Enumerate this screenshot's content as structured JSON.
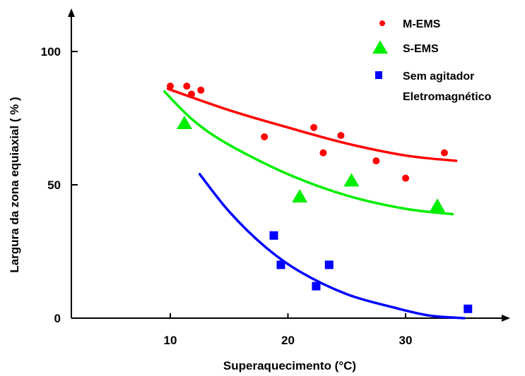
{
  "chart_data": {
    "type": "scatter",
    "title": "",
    "xlabel": "Superaquecimento (°C)",
    "ylabel": "Largura da zona equiaxial ( % )",
    "xlim": [
      0,
      38
    ],
    "ylim": [
      0,
      115
    ],
    "x_ticks": [
      "10",
      "20",
      "30"
    ],
    "y_ticks": [
      "0",
      "50",
      "100"
    ],
    "grid": false,
    "legend_position": "top-right",
    "series": [
      {
        "name": "M-EMS",
        "marker": "circle",
        "color": "#ff0000",
        "points": [
          [
            10,
            87
          ],
          [
            11.4,
            87
          ],
          [
            11.8,
            84
          ],
          [
            12.6,
            85.5
          ],
          [
            18,
            68
          ],
          [
            22.2,
            71.5
          ],
          [
            23,
            62
          ],
          [
            24.5,
            68.5
          ],
          [
            27.5,
            59
          ],
          [
            30,
            52.5
          ],
          [
            33.3,
            62
          ]
        ],
        "fit": [
          [
            9.8,
            86
          ],
          [
            15,
            78
          ],
          [
            20,
            71.5
          ],
          [
            25,
            65.5
          ],
          [
            30,
            61
          ],
          [
            34.3,
            59
          ]
        ]
      },
      {
        "name": "S-EMS",
        "marker": "triangle",
        "color": "#00ee00",
        "points": [
          [
            11.2,
            73
          ],
          [
            21,
            45.5
          ],
          [
            25.4,
            51.5
          ],
          [
            32.7,
            42
          ]
        ],
        "fit": [
          [
            9.5,
            85
          ],
          [
            12,
            74
          ],
          [
            15,
            65
          ],
          [
            20,
            54
          ],
          [
            25,
            46
          ],
          [
            30,
            41
          ],
          [
            34,
            39
          ]
        ]
      },
      {
        "name": "Sem agitador",
        "name_line2": "Eletromagnético",
        "marker": "square",
        "color": "#0000ff",
        "points": [
          [
            18.8,
            31
          ],
          [
            19.4,
            20
          ],
          [
            22.4,
            12
          ],
          [
            23.5,
            20
          ],
          [
            35.3,
            3.5
          ]
        ],
        "fit": [
          [
            12.5,
            54
          ],
          [
            15,
            40
          ],
          [
            18,
            27
          ],
          [
            21,
            17.5
          ],
          [
            25,
            9
          ],
          [
            29,
            4
          ],
          [
            32,
            1
          ],
          [
            35,
            0
          ]
        ]
      }
    ]
  }
}
